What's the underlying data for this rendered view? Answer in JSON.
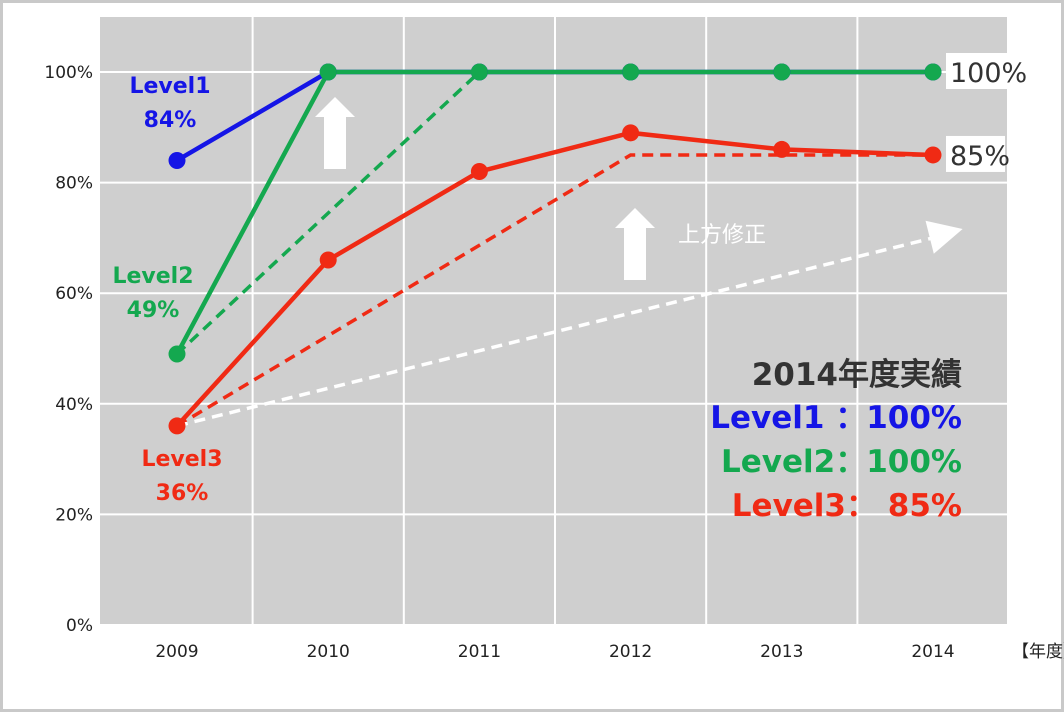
{
  "chart_data": {
    "type": "line",
    "x": [
      2009,
      2010,
      2011,
      2012,
      2013,
      2014
    ],
    "x_unit_label": "【年度】",
    "ylim": [
      0,
      100
    ],
    "yticks": [
      "0%",
      "20%",
      "40%",
      "60%",
      "80%",
      "100%"
    ],
    "grid": true,
    "colors": {
      "Level1": "#1515e6",
      "Level2": "#14a84f",
      "Level3": "#f02a14",
      "plan": "#ffffff",
      "plot_bg": "#cfcfcf"
    },
    "series": [
      {
        "name": "Level1",
        "values": [
          84,
          100,
          100,
          100,
          100,
          100
        ]
      },
      {
        "name": "Level2",
        "values": [
          49,
          100,
          100,
          100,
          100,
          100
        ]
      },
      {
        "name": "Level3",
        "values": [
          36,
          66,
          82,
          89,
          86,
          85
        ]
      }
    ],
    "planned_lines": [
      {
        "series": "Level2",
        "points": [
          [
            2009,
            49
          ],
          [
            2011,
            100
          ]
        ]
      },
      {
        "series": "Level3",
        "points": [
          [
            2009,
            36
          ],
          [
            2012,
            85
          ],
          [
            2014,
            85
          ]
        ]
      },
      {
        "series": "upward-revision",
        "points": [
          [
            2009,
            36
          ],
          [
            2014,
            70
          ]
        ]
      }
    ],
    "series_labels": [
      {
        "series": "Level1",
        "name": "Level1",
        "value": "84%"
      },
      {
        "series": "Level2",
        "name": "Level2",
        "value": "49%"
      },
      {
        "series": "Level3",
        "name": "Level3",
        "value": "36%"
      }
    ],
    "end_labels": [
      {
        "value": 100,
        "text": "100%"
      },
      {
        "value": 85,
        "text": "85%"
      }
    ],
    "annotation": "上方修正",
    "results_box": {
      "title": "2014年度実績",
      "rows": [
        {
          "series": "Level1",
          "text": "Level1 ：100%"
        },
        {
          "series": "Level2",
          "text": "Level2：100%"
        },
        {
          "series": "Level3",
          "text": "Level3：  85%"
        }
      ]
    }
  }
}
